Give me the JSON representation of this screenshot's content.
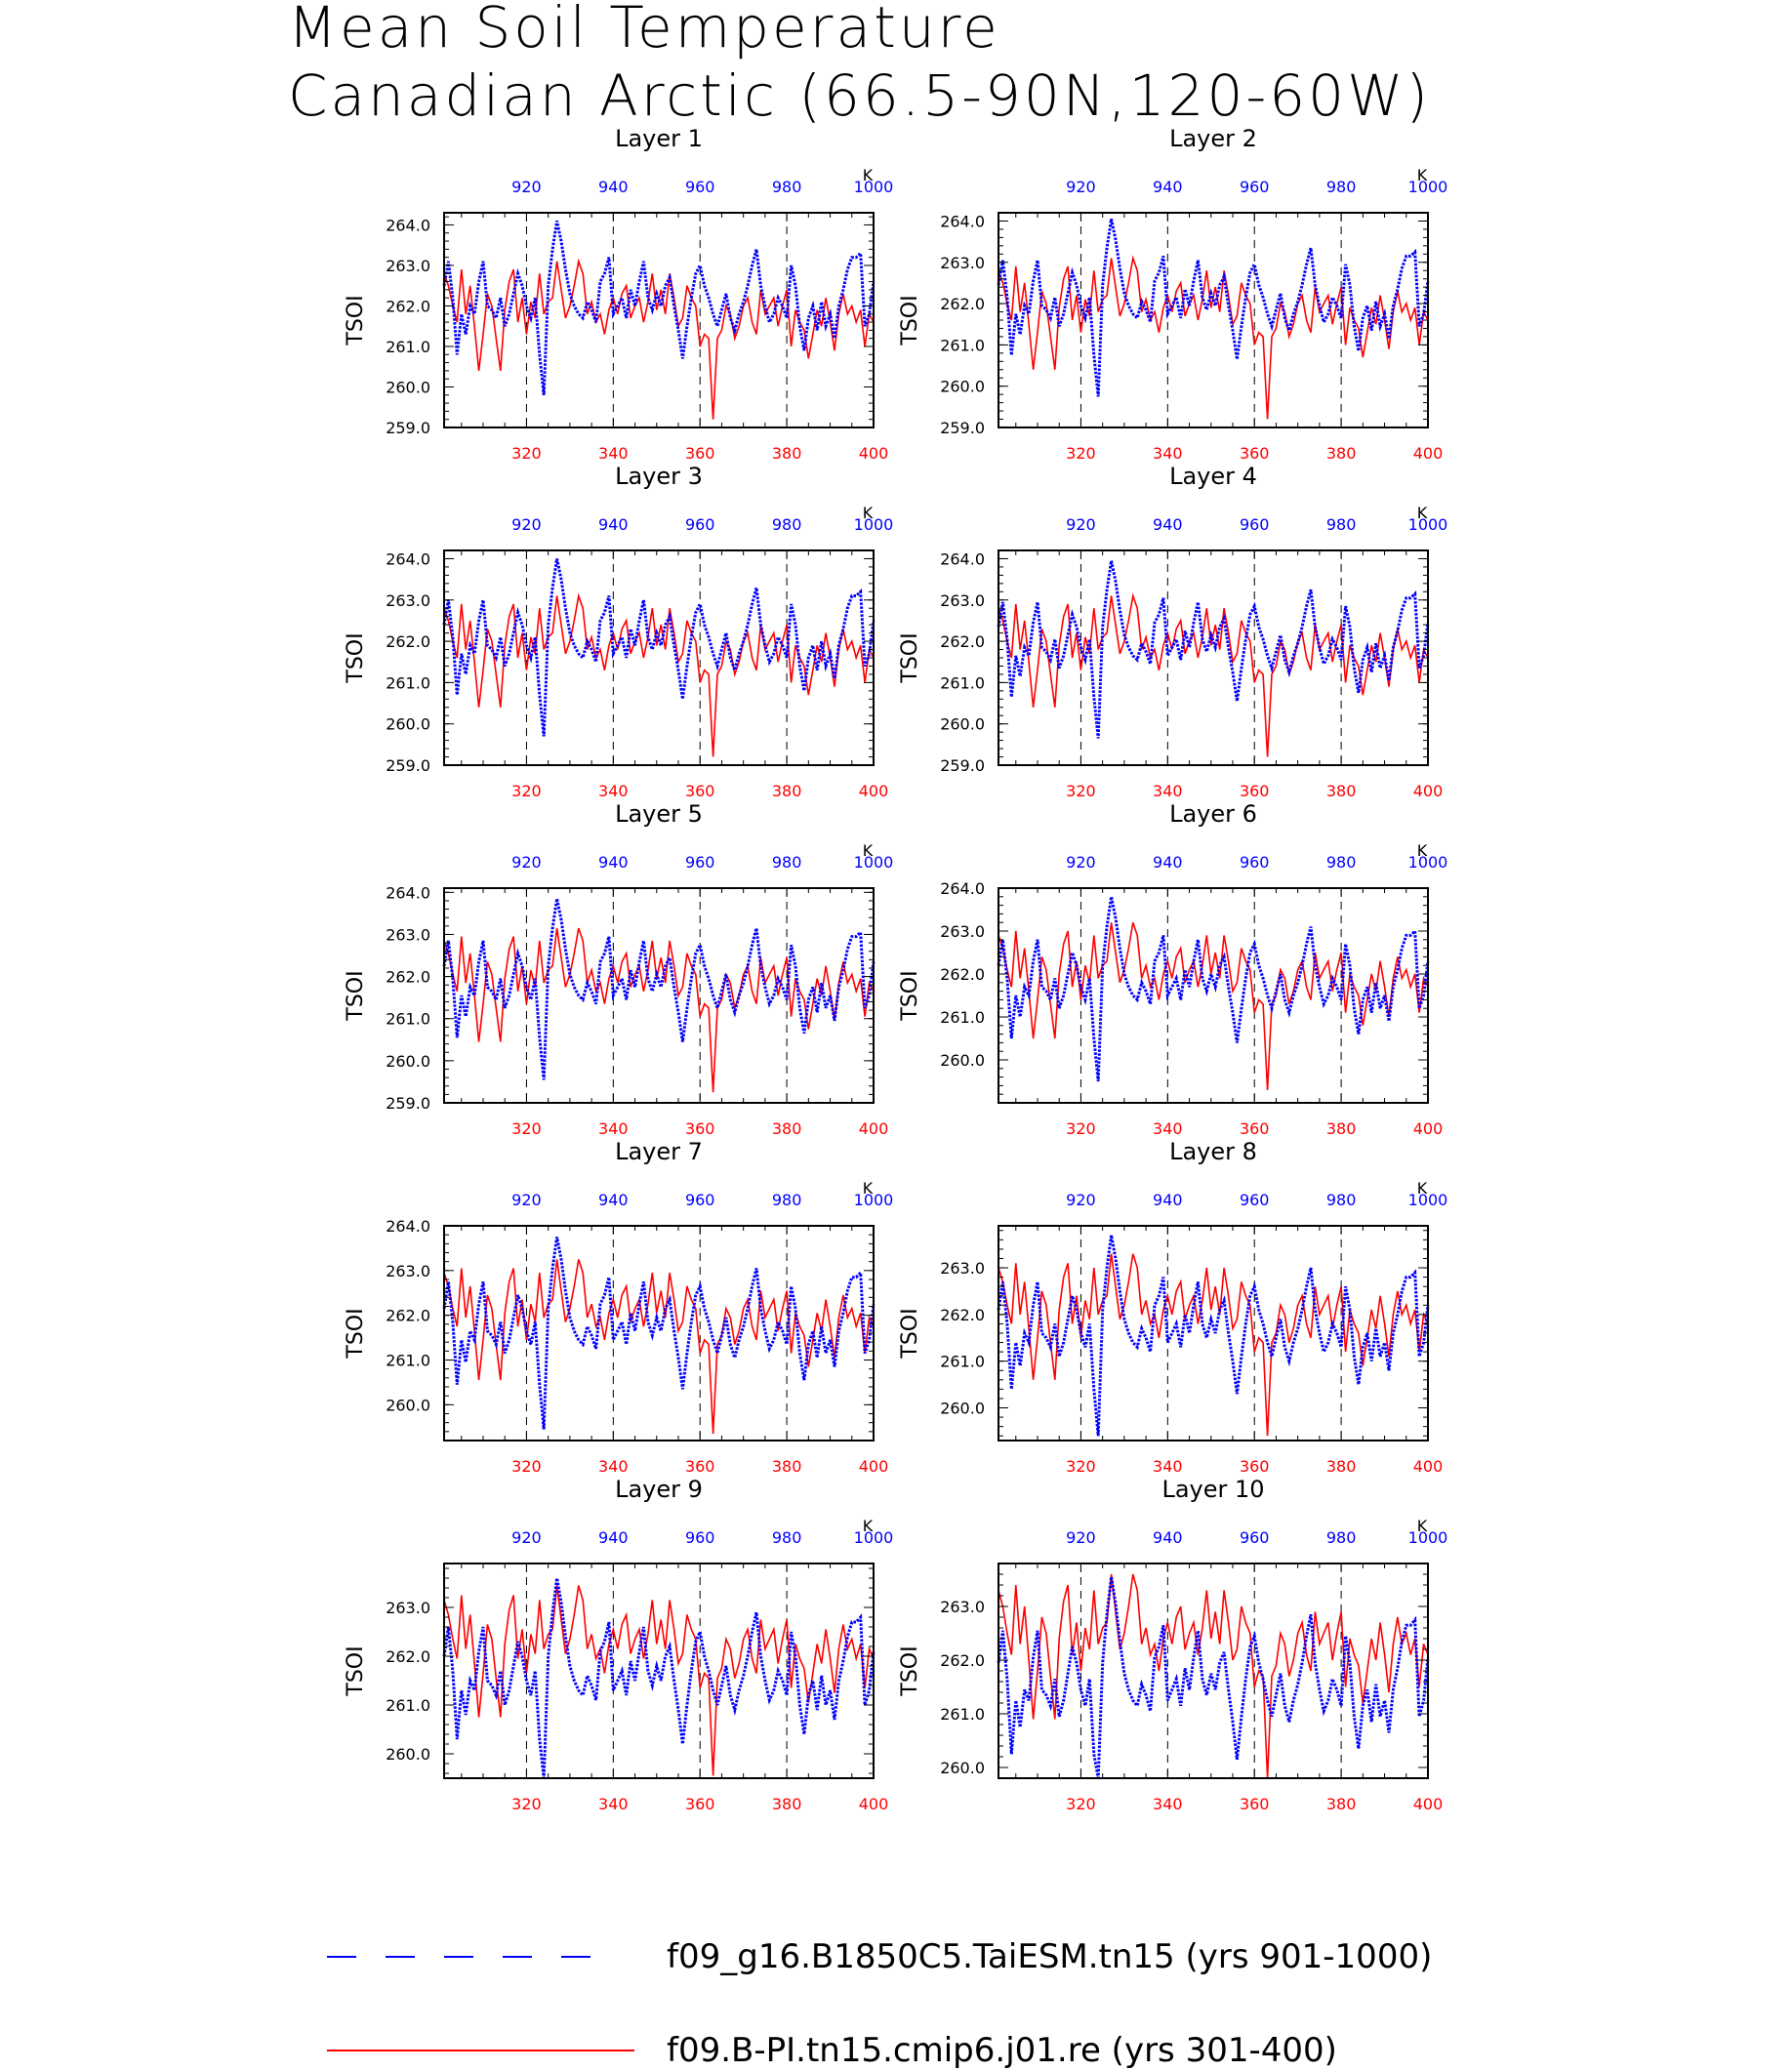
{
  "title": [
    "Mean Soil Temperature",
    "Canadian Arctic (66.5-90N,120-60W)"
  ],
  "colors": {
    "series_top": "#0000ff",
    "series_bottom": "#ff0000",
    "grid": "#000000"
  },
  "legend": [
    {
      "label": "f09_g16.B1850C5.TaiESM.tn15 (yrs 901-1000)",
      "color": "#0000ff",
      "style": "dashed"
    },
    {
      "label": "f09.B-PI.tn15.cmip6.j01.re (yrs 301-400)",
      "color": "#ff0000",
      "style": "solid"
    }
  ],
  "chart_data": {
    "type": "line",
    "panels": [
      {
        "title": "Layer 1",
        "ylabel": "TSOI",
        "ylim": [
          259.0,
          264.3
        ],
        "yticks": [
          "259.0",
          "260.0",
          "261.0",
          "262.0",
          "263.0",
          "264.0"
        ],
        "x_bottom": {
          "range": [
            301,
            400
          ],
          "ticks": [
            "320",
            "340",
            "360",
            "380",
            "400"
          ]
        },
        "x_top": {
          "range": [
            901,
            1000
          ],
          "ticks": [
            "920",
            "940",
            "960",
            "980",
            "1000"
          ],
          "unit": "K"
        },
        "blue_offset": 0.0,
        "red_offset": 0.0
      },
      {
        "title": "Layer 2",
        "ylabel": "TSOI",
        "ylim": [
          259.0,
          264.2
        ],
        "yticks": [
          "259.0",
          "260.0",
          "261.0",
          "262.0",
          "263.0",
          "264.0"
        ],
        "x_bottom": {
          "range": [
            301,
            400
          ],
          "ticks": [
            "320",
            "340",
            "360",
            "380",
            "400"
          ]
        },
        "x_top": {
          "range": [
            901,
            1000
          ],
          "ticks": [
            "920",
            "940",
            "960",
            "980",
            "1000"
          ],
          "unit": "K"
        },
        "blue_offset": -0.05,
        "red_offset": 0.0
      },
      {
        "title": "Layer 3",
        "ylabel": "TSOI",
        "ylim": [
          259.0,
          264.2
        ],
        "yticks": [
          "259.0",
          "260.0",
          "261.0",
          "262.0",
          "263.0",
          "264.0"
        ],
        "x_bottom": {
          "range": [
            301,
            400
          ],
          "ticks": [
            "320",
            "340",
            "360",
            "380",
            "400"
          ]
        },
        "x_top": {
          "range": [
            901,
            1000
          ],
          "ticks": [
            "920",
            "940",
            "960",
            "980",
            "1000"
          ],
          "unit": "K"
        },
        "blue_offset": -0.1,
        "red_offset": 0.0
      },
      {
        "title": "Layer 4",
        "ylabel": "TSOI",
        "ylim": [
          259.0,
          264.2
        ],
        "yticks": [
          "259.0",
          "260.0",
          "261.0",
          "262.0",
          "263.0",
          "264.0"
        ],
        "x_bottom": {
          "range": [
            301,
            400
          ],
          "ticks": [
            "320",
            "340",
            "360",
            "380",
            "400"
          ]
        },
        "x_top": {
          "range": [
            901,
            1000
          ],
          "ticks": [
            "920",
            "940",
            "960",
            "980",
            "1000"
          ],
          "unit": "K"
        },
        "blue_offset": -0.15,
        "red_offset": 0.0
      },
      {
        "title": "Layer 5",
        "ylabel": "TSOI",
        "ylim": [
          259.0,
          264.1
        ],
        "yticks": [
          "259.0",
          "260.0",
          "261.0",
          "262.0",
          "263.0",
          "264.0"
        ],
        "x_bottom": {
          "range": [
            301,
            400
          ],
          "ticks": [
            "320",
            "340",
            "360",
            "380",
            "400"
          ]
        },
        "x_top": {
          "range": [
            901,
            1000
          ],
          "ticks": [
            "920",
            "940",
            "960",
            "980",
            "1000"
          ],
          "unit": "K"
        },
        "blue_offset": -0.25,
        "red_offset": 0.05
      },
      {
        "title": "Layer 6",
        "ylabel": "TSOI",
        "ylim": [
          259.0,
          264.0
        ],
        "yticks": [
          "",
          "260.0",
          "261.0",
          "262.0",
          "263.0",
          "264.0"
        ],
        "x_bottom": {
          "range": [
            301,
            400
          ],
          "ticks": [
            "320",
            "340",
            "360",
            "380",
            "400"
          ]
        },
        "x_top": {
          "range": [
            901,
            1000
          ],
          "ticks": [
            "920",
            "940",
            "960",
            "980",
            "1000"
          ],
          "unit": "K"
        },
        "blue_offset": -0.3,
        "red_offset": 0.1
      },
      {
        "title": "Layer 7",
        "ylabel": "TSOI",
        "ylim": [
          259.2,
          264.0
        ],
        "yticks": [
          "",
          "260.0",
          "261.0",
          "262.0",
          "263.0",
          "264.0"
        ],
        "x_bottom": {
          "range": [
            301,
            400
          ],
          "ticks": [
            "320",
            "340",
            "360",
            "380",
            "400"
          ]
        },
        "x_top": {
          "range": [
            901,
            1000
          ],
          "ticks": [
            "920",
            "940",
            "960",
            "980",
            "1000"
          ],
          "unit": "K"
        },
        "blue_offset": -0.35,
        "red_offset": 0.15
      },
      {
        "title": "Layer 8",
        "ylabel": "TSOI",
        "ylim": [
          259.3,
          263.9
        ],
        "yticks": [
          "",
          "260.0",
          "261.0",
          "262.0",
          "263.0"
        ],
        "x_bottom": {
          "range": [
            301,
            400
          ],
          "ticks": [
            "320",
            "340",
            "360",
            "380",
            "400"
          ]
        },
        "x_top": {
          "range": [
            901,
            1000
          ],
          "ticks": [
            "920",
            "940",
            "960",
            "980",
            "1000"
          ],
          "unit": "K"
        },
        "blue_offset": -0.4,
        "red_offset": 0.2
      },
      {
        "title": "Layer 9",
        "ylabel": "TSOI",
        "ylim": [
          259.5,
          263.9
        ],
        "yticks": [
          "260.0",
          "261.0",
          "262.0",
          "263.0"
        ],
        "x_bottom": {
          "range": [
            301,
            400
          ],
          "ticks": [
            "320",
            "340",
            "360",
            "380",
            "400"
          ]
        },
        "x_top": {
          "range": [
            901,
            1000
          ],
          "ticks": [
            "920",
            "940",
            "960",
            "980",
            "1000"
          ],
          "unit": "K"
        },
        "blue_offset": -0.5,
        "red_offset": 0.35
      },
      {
        "title": "Layer 10",
        "ylabel": "TSOI",
        "ylim": [
          259.8,
          263.8
        ],
        "yticks": [
          "260.0",
          "261.0",
          "262.0",
          "263.0"
        ],
        "x_bottom": {
          "range": [
            301,
            400
          ],
          "ticks": [
            "320",
            "340",
            "360",
            "380",
            "400"
          ]
        },
        "x_top": {
          "range": [
            901,
            1000
          ],
          "ticks": [
            "920",
            "940",
            "960",
            "980",
            "1000"
          ],
          "unit": "K"
        },
        "blue_offset": -0.55,
        "red_offset": 0.5
      }
    ],
    "series_template": {
      "blue_years_901_1000": [
        262.5,
        263.1,
        262.2,
        260.8,
        261.8,
        261.3,
        262.0,
        261.8,
        262.6,
        263.1,
        262.0,
        261.9,
        261.7,
        262.2,
        261.5,
        261.8,
        262.3,
        262.8,
        262.5,
        262.0,
        261.7,
        262.2,
        260.8,
        259.8,
        262.5,
        263.4,
        264.1,
        263.6,
        262.9,
        262.3,
        262.0,
        261.8,
        261.7,
        262.1,
        261.9,
        261.6,
        262.6,
        262.8,
        263.2,
        261.8,
        262.0,
        262.2,
        261.7,
        262.4,
        262.0,
        262.6,
        263.1,
        262.2,
        261.9,
        262.3,
        262.0,
        262.5,
        262.7,
        262.0,
        261.4,
        260.7,
        261.5,
        262.2,
        262.8,
        263.0,
        262.5,
        262.2,
        261.8,
        261.5,
        261.9,
        262.3,
        261.7,
        261.4,
        261.8,
        262.1,
        262.5,
        263.0,
        263.4,
        262.5,
        262.0,
        261.6,
        261.8,
        262.2,
        262.0,
        261.7,
        263.0,
        262.5,
        261.5,
        260.9,
        261.7,
        262.0,
        261.4,
        262.1,
        261.5,
        261.8,
        261.2,
        262.0,
        262.4,
        262.9,
        263.2,
        263.2,
        263.3,
        261.5,
        261.8,
        262.6
      ],
      "red_years_301_400": [
        262.8,
        262.5,
        262.0,
        261.6,
        262.9,
        261.8,
        262.5,
        261.5,
        260.4,
        261.3,
        262.3,
        262.0,
        261.2,
        260.4,
        261.9,
        262.6,
        262.9,
        261.6,
        262.2,
        261.3,
        262.1,
        261.7,
        262.8,
        261.8,
        262.1,
        262.2,
        263.1,
        262.4,
        261.7,
        262.0,
        262.5,
        263.1,
        262.8,
        261.8,
        262.1,
        261.6,
        261.8,
        261.3,
        261.9,
        262.2,
        261.8,
        262.3,
        262.5,
        261.7,
        262.0,
        262.2,
        261.6,
        262.1,
        262.8,
        261.9,
        262.4,
        261.8,
        262.8,
        262.2,
        261.5,
        261.7,
        262.5,
        262.2,
        262.0,
        261.0,
        261.3,
        261.2,
        259.2,
        261.2,
        261.4,
        262.0,
        261.8,
        261.2,
        261.5,
        262.0,
        262.2,
        261.6,
        261.3,
        262.4,
        261.8,
        262.0,
        262.2,
        261.5,
        262.0,
        262.4,
        261.0,
        261.9,
        261.6,
        261.4,
        260.7,
        261.3,
        261.9,
        261.5,
        262.2,
        261.6,
        260.9,
        261.8,
        262.3,
        261.8,
        262.0,
        261.6,
        261.9,
        261.0,
        261.8,
        261.6
      ]
    }
  }
}
